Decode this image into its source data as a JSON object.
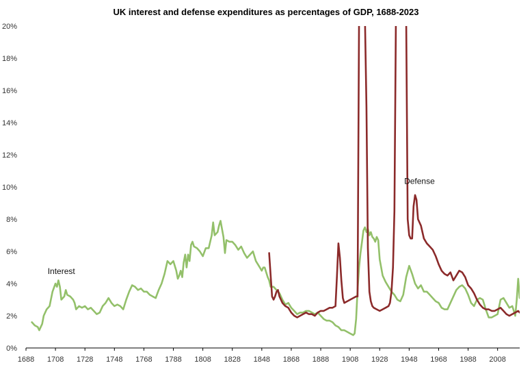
{
  "chart_data": {
    "type": "line",
    "title": "UK interest and defense expenditures as percentages of GDP, 1688-2023",
    "xlabel": "",
    "ylabel": "",
    "xlim": [
      1688,
      2023
    ],
    "ylim": [
      0,
      20
    ],
    "x_ticks": [
      1688,
      1708,
      1728,
      1748,
      1768,
      1788,
      1808,
      1828,
      1848,
      1868,
      1888,
      1908,
      1928,
      1948,
      1968,
      1988,
      2008
    ],
    "y_ticks": [
      0,
      2,
      4,
      6,
      8,
      10,
      12,
      14,
      16,
      18,
      20
    ],
    "y_tick_labels": [
      "0%",
      "2%",
      "4%",
      "6%",
      "8%",
      "10%",
      "12%",
      "14%",
      "16%",
      "18%",
      "20%"
    ],
    "grid": false,
    "legend": "none",
    "annotations": [
      {
        "text": "Interest",
        "series": "Interest",
        "x": 1712,
        "y": 4.6
      },
      {
        "text": "Defense",
        "series": "Defense",
        "x": 1955,
        "y": 10.2
      }
    ],
    "series": [
      {
        "name": "Interest",
        "color": "#93c06a",
        "points": [
          [
            1692,
            1.6
          ],
          [
            1694,
            1.4
          ],
          [
            1696,
            1.3
          ],
          [
            1697,
            1.1
          ],
          [
            1699,
            1.5
          ],
          [
            1700,
            2.0
          ],
          [
            1702,
            2.4
          ],
          [
            1704,
            2.6
          ],
          [
            1706,
            3.5
          ],
          [
            1708,
            4.0
          ],
          [
            1709,
            3.8
          ],
          [
            1710,
            4.2
          ],
          [
            1711,
            3.8
          ],
          [
            1712,
            3.0
          ],
          [
            1714,
            3.2
          ],
          [
            1715,
            3.6
          ],
          [
            1716,
            3.3
          ],
          [
            1718,
            3.2
          ],
          [
            1720,
            3.0
          ],
          [
            1721,
            2.8
          ],
          [
            1722,
            2.4
          ],
          [
            1724,
            2.6
          ],
          [
            1726,
            2.5
          ],
          [
            1728,
            2.6
          ],
          [
            1730,
            2.4
          ],
          [
            1732,
            2.5
          ],
          [
            1734,
            2.3
          ],
          [
            1736,
            2.1
          ],
          [
            1738,
            2.2
          ],
          [
            1740,
            2.6
          ],
          [
            1742,
            2.8
          ],
          [
            1744,
            3.1
          ],
          [
            1746,
            2.8
          ],
          [
            1748,
            2.6
          ],
          [
            1750,
            2.7
          ],
          [
            1752,
            2.6
          ],
          [
            1754,
            2.4
          ],
          [
            1756,
            3.0
          ],
          [
            1758,
            3.5
          ],
          [
            1760,
            3.9
          ],
          [
            1762,
            3.8
          ],
          [
            1764,
            3.6
          ],
          [
            1766,
            3.7
          ],
          [
            1768,
            3.5
          ],
          [
            1770,
            3.5
          ],
          [
            1772,
            3.3
          ],
          [
            1774,
            3.2
          ],
          [
            1776,
            3.1
          ],
          [
            1778,
            3.6
          ],
          [
            1780,
            4.0
          ],
          [
            1782,
            4.6
          ],
          [
            1784,
            5.4
          ],
          [
            1786,
            5.2
          ],
          [
            1788,
            5.4
          ],
          [
            1790,
            4.8
          ],
          [
            1791,
            4.3
          ],
          [
            1792,
            4.5
          ],
          [
            1793,
            4.8
          ],
          [
            1794,
            4.4
          ],
          [
            1795,
            5.3
          ],
          [
            1796,
            5.8
          ],
          [
            1797,
            5.0
          ],
          [
            1798,
            5.8
          ],
          [
            1799,
            5.4
          ],
          [
            1800,
            6.4
          ],
          [
            1801,
            6.6
          ],
          [
            1802,
            6.3
          ],
          [
            1804,
            6.2
          ],
          [
            1806,
            6.0
          ],
          [
            1808,
            5.7
          ],
          [
            1810,
            6.2
          ],
          [
            1812,
            6.2
          ],
          [
            1814,
            7.0
          ],
          [
            1815,
            7.8
          ],
          [
            1816,
            7.0
          ],
          [
            1818,
            7.2
          ],
          [
            1819,
            7.6
          ],
          [
            1820,
            7.9
          ],
          [
            1822,
            6.9
          ],
          [
            1823,
            5.9
          ],
          [
            1824,
            6.7
          ],
          [
            1826,
            6.6
          ],
          [
            1828,
            6.6
          ],
          [
            1830,
            6.4
          ],
          [
            1832,
            6.1
          ],
          [
            1834,
            6.3
          ],
          [
            1836,
            5.9
          ],
          [
            1838,
            5.6
          ],
          [
            1840,
            5.8
          ],
          [
            1842,
            6.0
          ],
          [
            1844,
            5.4
          ],
          [
            1846,
            5.1
          ],
          [
            1848,
            4.8
          ],
          [
            1849,
            5.0
          ],
          [
            1850,
            5.0
          ],
          [
            1851,
            4.7
          ],
          [
            1852,
            4.4
          ],
          [
            1853,
            4.2
          ],
          [
            1854,
            3.8
          ],
          [
            1856,
            3.8
          ],
          [
            1858,
            3.6
          ],
          [
            1860,
            3.4
          ],
          [
            1862,
            3.0
          ],
          [
            1864,
            2.7
          ],
          [
            1866,
            2.8
          ],
          [
            1868,
            2.5
          ],
          [
            1870,
            2.3
          ],
          [
            1872,
            2.1
          ],
          [
            1874,
            2.2
          ],
          [
            1876,
            2.2
          ],
          [
            1878,
            2.3
          ],
          [
            1880,
            2.3
          ],
          [
            1882,
            2.2
          ],
          [
            1884,
            2.1
          ],
          [
            1886,
            2.2
          ],
          [
            1888,
            2.0
          ],
          [
            1890,
            1.8
          ],
          [
            1892,
            1.7
          ],
          [
            1894,
            1.7
          ],
          [
            1896,
            1.6
          ],
          [
            1898,
            1.4
          ],
          [
            1900,
            1.3
          ],
          [
            1902,
            1.1
          ],
          [
            1904,
            1.1
          ],
          [
            1906,
            1.0
          ],
          [
            1908,
            0.9
          ],
          [
            1910,
            0.8
          ],
          [
            1911,
            0.9
          ],
          [
            1912,
            1.8
          ],
          [
            1913,
            3.6
          ],
          [
            1914,
            5.0
          ],
          [
            1915,
            5.9
          ],
          [
            1916,
            6.6
          ],
          [
            1917,
            7.3
          ],
          [
            1918,
            7.5
          ],
          [
            1919,
            7.2
          ],
          [
            1920,
            7.4
          ],
          [
            1921,
            7.0
          ],
          [
            1922,
            7.2
          ],
          [
            1923,
            6.9
          ],
          [
            1924,
            6.8
          ],
          [
            1925,
            6.6
          ],
          [
            1926,
            6.9
          ],
          [
            1927,
            6.7
          ],
          [
            1928,
            5.5
          ],
          [
            1930,
            4.5
          ],
          [
            1932,
            4.1
          ],
          [
            1934,
            3.8
          ],
          [
            1936,
            3.5
          ],
          [
            1938,
            3.3
          ],
          [
            1940,
            3.0
          ],
          [
            1942,
            2.9
          ],
          [
            1944,
            3.3
          ],
          [
            1946,
            4.4
          ],
          [
            1948,
            5.1
          ],
          [
            1950,
            4.6
          ],
          [
            1952,
            4.0
          ],
          [
            1954,
            3.7
          ],
          [
            1956,
            3.9
          ],
          [
            1958,
            3.5
          ],
          [
            1960,
            3.5
          ],
          [
            1962,
            3.3
          ],
          [
            1964,
            3.1
          ],
          [
            1966,
            2.9
          ],
          [
            1968,
            2.8
          ],
          [
            1970,
            2.5
          ],
          [
            1972,
            2.4
          ],
          [
            1974,
            2.4
          ],
          [
            1976,
            2.8
          ],
          [
            1978,
            3.2
          ],
          [
            1980,
            3.6
          ],
          [
            1982,
            3.8
          ],
          [
            1984,
            3.9
          ],
          [
            1986,
            3.7
          ],
          [
            1988,
            3.3
          ],
          [
            1990,
            2.8
          ],
          [
            1992,
            2.6
          ],
          [
            1994,
            3.0
          ],
          [
            1996,
            3.1
          ],
          [
            1998,
            3.0
          ],
          [
            2000,
            2.4
          ],
          [
            2002,
            1.9
          ],
          [
            2004,
            1.9
          ],
          [
            2006,
            2.0
          ],
          [
            2008,
            2.1
          ],
          [
            2010,
            3.0
          ],
          [
            2012,
            3.1
          ],
          [
            2014,
            2.8
          ],
          [
            2016,
            2.5
          ],
          [
            2018,
            2.6
          ],
          [
            2019,
            2.3
          ],
          [
            2020,
            2.0
          ],
          [
            2021,
            3.0
          ],
          [
            2022,
            4.3
          ],
          [
            2023,
            3.1
          ]
        ]
      },
      {
        "name": "Defense",
        "color": "#8b2a2a",
        "points": [
          [
            1853,
            5.9
          ],
          [
            1854,
            4.5
          ],
          [
            1855,
            3.2
          ],
          [
            1856,
            3.0
          ],
          [
            1857,
            3.2
          ],
          [
            1858,
            3.5
          ],
          [
            1859,
            3.6
          ],
          [
            1860,
            3.2
          ],
          [
            1862,
            2.8
          ],
          [
            1864,
            2.6
          ],
          [
            1866,
            2.5
          ],
          [
            1868,
            2.2
          ],
          [
            1870,
            2.0
          ],
          [
            1872,
            1.9
          ],
          [
            1874,
            2.0
          ],
          [
            1876,
            2.1
          ],
          [
            1878,
            2.2
          ],
          [
            1880,
            2.1
          ],
          [
            1882,
            2.1
          ],
          [
            1884,
            2.0
          ],
          [
            1886,
            2.2
          ],
          [
            1888,
            2.3
          ],
          [
            1890,
            2.3
          ],
          [
            1892,
            2.4
          ],
          [
            1894,
            2.5
          ],
          [
            1896,
            2.5
          ],
          [
            1898,
            2.6
          ],
          [
            1899,
            4.5
          ],
          [
            1900,
            6.5
          ],
          [
            1901,
            5.6
          ],
          [
            1902,
            4.2
          ],
          [
            1903,
            3.1
          ],
          [
            1904,
            2.8
          ],
          [
            1906,
            2.9
          ],
          [
            1908,
            3.0
          ],
          [
            1910,
            3.1
          ],
          [
            1912,
            3.2
          ],
          [
            1913,
            3.2
          ],
          [
            1914,
            20.5
          ],
          [
            1917,
            20.5
          ],
          [
            1918,
            20.5
          ],
          [
            1919,
            15
          ],
          [
            1920,
            6.2
          ],
          [
            1921,
            3.5
          ],
          [
            1922,
            2.9
          ],
          [
            1923,
            2.6
          ],
          [
            1924,
            2.5
          ],
          [
            1926,
            2.4
          ],
          [
            1928,
            2.3
          ],
          [
            1930,
            2.4
          ],
          [
            1932,
            2.5
          ],
          [
            1934,
            2.6
          ],
          [
            1935,
            2.8
          ],
          [
            1936,
            3.5
          ],
          [
            1937,
            5.0
          ],
          [
            1938,
            8.5
          ],
          [
            1939,
            20.5
          ],
          [
            1946,
            20.5
          ],
          [
            1947,
            8.0
          ],
          [
            1948,
            7.0
          ],
          [
            1949,
            6.8
          ],
          [
            1950,
            6.8
          ],
          [
            1951,
            8.8
          ],
          [
            1952,
            9.5
          ],
          [
            1953,
            9.2
          ],
          [
            1954,
            8.0
          ],
          [
            1956,
            7.6
          ],
          [
            1958,
            6.8
          ],
          [
            1960,
            6.5
          ],
          [
            1962,
            6.3
          ],
          [
            1964,
            6.1
          ],
          [
            1966,
            5.7
          ],
          [
            1968,
            5.2
          ],
          [
            1970,
            4.8
          ],
          [
            1972,
            4.6
          ],
          [
            1974,
            4.5
          ],
          [
            1976,
            4.7
          ],
          [
            1978,
            4.2
          ],
          [
            1980,
            4.5
          ],
          [
            1982,
            4.8
          ],
          [
            1984,
            4.7
          ],
          [
            1986,
            4.4
          ],
          [
            1988,
            3.9
          ],
          [
            1990,
            3.7
          ],
          [
            1992,
            3.4
          ],
          [
            1994,
            3.0
          ],
          [
            1996,
            2.7
          ],
          [
            1998,
            2.5
          ],
          [
            2000,
            2.4
          ],
          [
            2002,
            2.4
          ],
          [
            2004,
            2.3
          ],
          [
            2006,
            2.3
          ],
          [
            2008,
            2.4
          ],
          [
            2010,
            2.5
          ],
          [
            2012,
            2.3
          ],
          [
            2014,
            2.1
          ],
          [
            2016,
            2.0
          ],
          [
            2018,
            2.1
          ],
          [
            2020,
            2.2
          ],
          [
            2022,
            2.3
          ],
          [
            2023,
            2.2
          ]
        ]
      }
    ]
  }
}
